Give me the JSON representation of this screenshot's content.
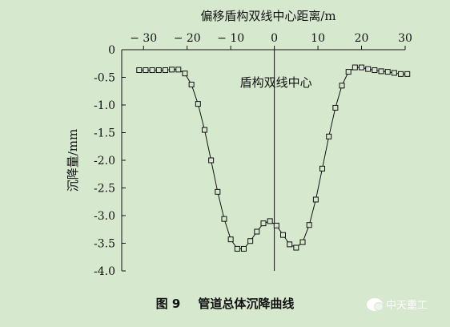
{
  "chart_data": {
    "type": "scatter",
    "title": "",
    "xlabel": "偏移盾构双线中心距离/m",
    "ylabel": "沉降量/mm",
    "xlim": [
      -35,
      30
    ],
    "ylim": [
      -4.0,
      0
    ],
    "x_ticks": [
      -30,
      -20,
      -10,
      0,
      10,
      20,
      30
    ],
    "y_ticks": [
      0,
      -0.5,
      -1.0,
      -1.5,
      -2.0,
      -2.5,
      -3.0,
      -3.5,
      -4.0
    ],
    "y_tick_labels": [
      "0",
      "-0.5",
      "-1.0",
      "-1.5",
      "-2.0",
      "-2.5",
      "-3.0",
      "-3.5",
      "-4.0"
    ],
    "annotation": "盾构双线中心",
    "series": [
      {
        "marker": "square",
        "x": [
          -31,
          -29.5,
          -28,
          -26.5,
          -25,
          -23.5,
          -22,
          -20.5,
          -19,
          -17.5,
          -16,
          -14.5,
          -13,
          -11.5,
          -10,
          -8.5,
          -7,
          -5.5,
          -4,
          -2.5,
          -1,
          0.5,
          2,
          3.5,
          5,
          6.5,
          8,
          9.5,
          11,
          12.5,
          14,
          15.5,
          17,
          18.5,
          20,
          21.5,
          23,
          24.5,
          26,
          27.5,
          29,
          30.5
        ],
        "y": [
          -0.37,
          -0.37,
          -0.37,
          -0.37,
          -0.37,
          -0.36,
          -0.36,
          -0.43,
          -0.63,
          -0.98,
          -1.45,
          -2.0,
          -2.57,
          -3.06,
          -3.43,
          -3.6,
          -3.6,
          -3.46,
          -3.29,
          -3.14,
          -3.1,
          -3.18,
          -3.35,
          -3.52,
          -3.58,
          -3.48,
          -3.17,
          -2.71,
          -2.15,
          -1.57,
          -1.05,
          -0.65,
          -0.4,
          -0.32,
          -0.32,
          -0.35,
          -0.37,
          -0.39,
          -0.4,
          -0.42,
          -0.44,
          -0.44
        ]
      }
    ]
  },
  "caption": {
    "number": "图 9",
    "text": "管道总体沉降曲线"
  },
  "watermark": "中天重工"
}
